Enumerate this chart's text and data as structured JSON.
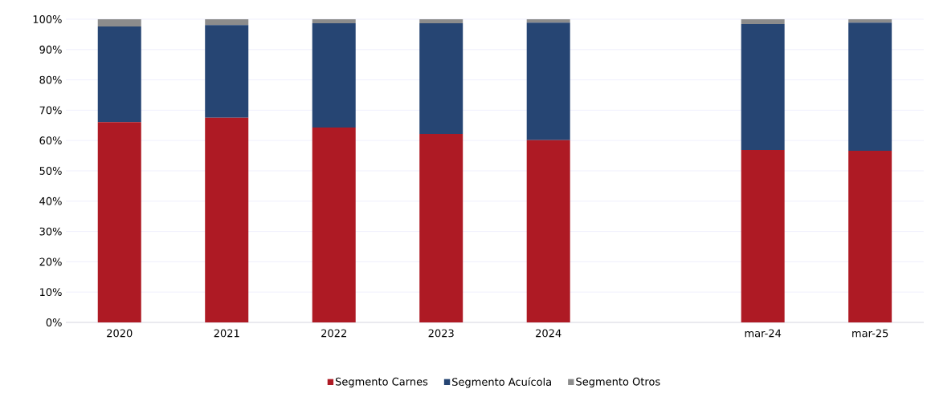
{
  "chart_data": {
    "type": "bar",
    "stacked": true,
    "categories": [
      "2020",
      "2021",
      "2022",
      "2023",
      "2024",
      null,
      "mar-24",
      "mar-25"
    ],
    "series": [
      {
        "name": "Segmento Carnes",
        "color": "#ae1a24",
        "values": [
          66.1,
          67.5,
          64.3,
          62.2,
          60.1,
          null,
          56.9,
          56.6
        ]
      },
      {
        "name": "Segmento Acuícola",
        "color": "#264573",
        "values": [
          31.5,
          30.6,
          34.4,
          36.5,
          38.8,
          null,
          41.5,
          42.3
        ]
      },
      {
        "name": "Segmento Otros",
        "color": "#8c8c8c",
        "values": [
          2.4,
          1.9,
          1.3,
          1.3,
          1.1,
          null,
          1.6,
          1.1
        ]
      }
    ],
    "ylim": [
      0,
      100
    ],
    "yticks": [
      {
        "value": 0,
        "label": "0%"
      },
      {
        "value": 10,
        "label": "10%"
      },
      {
        "value": 20,
        "label": "20%"
      },
      {
        "value": 30,
        "label": "30%"
      },
      {
        "value": 40,
        "label": "40%"
      },
      {
        "value": 50,
        "label": "50%"
      },
      {
        "value": 60,
        "label": "60%"
      },
      {
        "value": 70,
        "label": "70%"
      },
      {
        "value": 80,
        "label": "80%"
      },
      {
        "value": 90,
        "label": "90%"
      },
      {
        "value": 100,
        "label": "100%"
      }
    ],
    "grid": "y",
    "legend": "bottom"
  }
}
